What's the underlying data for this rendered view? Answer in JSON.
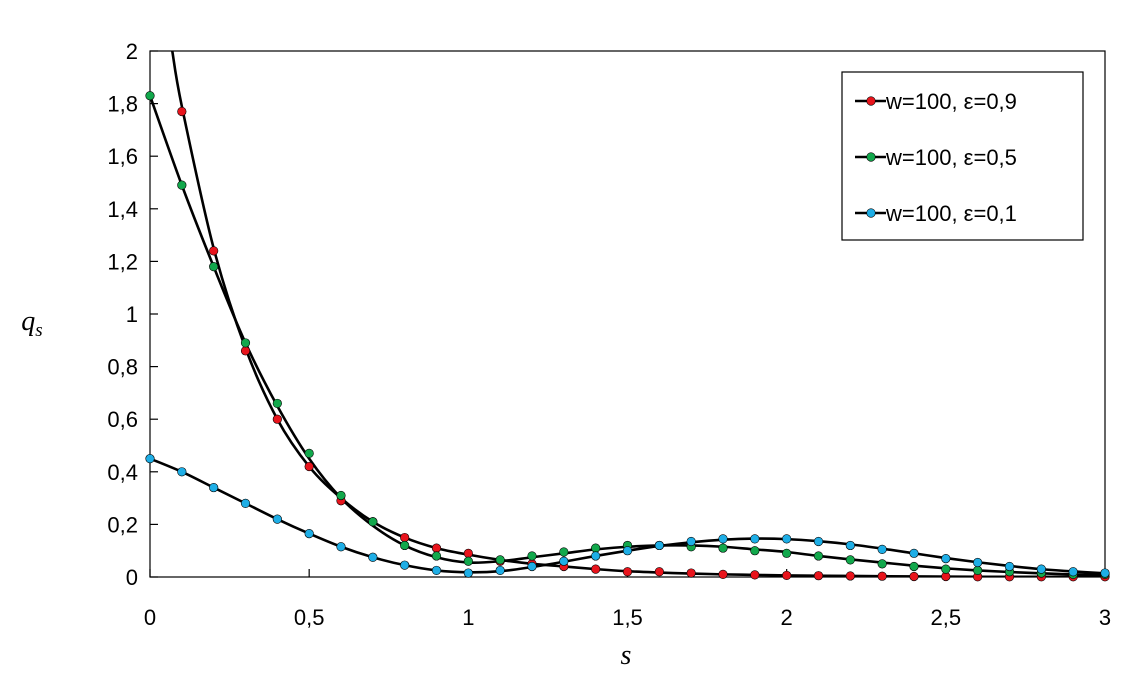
{
  "chart_data": {
    "type": "line",
    "xlabel": "s",
    "ylabel": "q",
    "ylabel_sub": "s",
    "xlim": [
      0,
      3
    ],
    "ylim": [
      0,
      2
    ],
    "x_ticks": [
      0,
      0.5,
      1,
      1.5,
      2,
      2.5,
      3
    ],
    "x_tick_labels": [
      "0",
      "0,5",
      "1",
      "1,5",
      "2",
      "2,5",
      "3"
    ],
    "y_ticks": [
      0,
      0.2,
      0.4,
      0.6,
      0.8,
      1,
      1.2,
      1.4,
      1.6,
      1.8,
      2
    ],
    "y_tick_labels": [
      "0",
      "0,2",
      "0,4",
      "0,6",
      "0,8",
      "1",
      "1,2",
      "1,4",
      "1,6",
      "1,8",
      "2"
    ],
    "grid": false,
    "legend_position": "top-right",
    "line_color": "#000000",
    "series": [
      {
        "name": "w=100, ε=0,9",
        "color": "#e8141c",
        "x": [
          0.1,
          0.2,
          0.3,
          0.4,
          0.5,
          0.6,
          0.7,
          0.8,
          0.9,
          1.0,
          1.1,
          1.2,
          1.3,
          1.4,
          1.5,
          1.6,
          1.7,
          1.8,
          1.9,
          2.0,
          2.1,
          2.2,
          2.3,
          2.4,
          2.5,
          2.6,
          2.7,
          2.8,
          2.9,
          3.0
        ],
        "values": [
          1.77,
          1.24,
          0.86,
          0.6,
          0.42,
          0.29,
          0.21,
          0.15,
          0.11,
          0.09,
          0.06,
          0.05,
          0.04,
          0.03,
          0.02,
          0.02,
          0.015,
          0.01,
          0.008,
          0.006,
          0.005,
          0.004,
          0.003,
          0.002,
          0.002,
          0.001,
          0.001,
          0.001,
          0.001,
          0.001
        ]
      },
      {
        "name": "w=100, ε=0,5",
        "color": "#12a84c",
        "x": [
          0,
          0.1,
          0.2,
          0.3,
          0.4,
          0.5,
          0.6,
          0.7,
          0.8,
          0.9,
          1.0,
          1.1,
          1.2,
          1.3,
          1.4,
          1.5,
          1.6,
          1.7,
          1.8,
          1.9,
          2.0,
          2.1,
          2.2,
          2.3,
          2.4,
          2.5,
          2.6,
          2.7,
          2.8,
          2.9,
          3.0
        ],
        "values": [
          1.83,
          1.49,
          1.18,
          0.89,
          0.66,
          0.47,
          0.31,
          0.21,
          0.12,
          0.08,
          0.06,
          0.065,
          0.08,
          0.095,
          0.11,
          0.12,
          0.12,
          0.115,
          0.11,
          0.1,
          0.09,
          0.08,
          0.065,
          0.05,
          0.04,
          0.03,
          0.025,
          0.02,
          0.015,
          0.01,
          0.01
        ]
      },
      {
        "name": "w=100, ε=0,1",
        "color": "#1eaee6",
        "x": [
          0,
          0.1,
          0.2,
          0.3,
          0.4,
          0.5,
          0.6,
          0.7,
          0.8,
          0.9,
          1.0,
          1.1,
          1.2,
          1.3,
          1.4,
          1.5,
          1.6,
          1.7,
          1.8,
          1.9,
          2.0,
          2.1,
          2.2,
          2.3,
          2.4,
          2.5,
          2.6,
          2.7,
          2.8,
          2.9,
          3.0
        ],
        "values": [
          0.45,
          0.4,
          0.34,
          0.28,
          0.22,
          0.165,
          0.115,
          0.075,
          0.045,
          0.025,
          0.015,
          0.025,
          0.04,
          0.06,
          0.08,
          0.1,
          0.12,
          0.135,
          0.145,
          0.145,
          0.145,
          0.135,
          0.12,
          0.105,
          0.09,
          0.07,
          0.055,
          0.04,
          0.03,
          0.02,
          0.015
        ]
      }
    ],
    "lines": [
      {
        "x": [
          0.07,
          0.1,
          0.2,
          0.3,
          0.4,
          0.5,
          0.6,
          0.7,
          0.8,
          0.9,
          1.0,
          1.1,
          1.2,
          1.3,
          1.4,
          1.5,
          1.6,
          1.7,
          1.8,
          1.9,
          2.0,
          2.2,
          2.4,
          2.6,
          2.8,
          3.0
        ],
        "values": [
          2.0,
          1.79,
          1.25,
          0.87,
          0.6,
          0.42,
          0.3,
          0.21,
          0.15,
          0.11,
          0.085,
          0.065,
          0.05,
          0.04,
          0.03,
          0.022,
          0.017,
          0.013,
          0.01,
          0.008,
          0.006,
          0.004,
          0.002,
          0.001,
          0.001,
          0.001
        ]
      },
      {
        "x": [
          0,
          0.1,
          0.2,
          0.3,
          0.4,
          0.5,
          0.6,
          0.7,
          0.8,
          0.9,
          1.0,
          1.1,
          1.2,
          1.3,
          1.4,
          1.5,
          1.6,
          1.7,
          1.8,
          1.9,
          2.0,
          2.1,
          2.2,
          2.3,
          2.4,
          2.5,
          2.6,
          2.7,
          2.8,
          2.9,
          3.0
        ],
        "values": [
          1.83,
          1.49,
          1.18,
          0.89,
          0.65,
          0.45,
          0.3,
          0.195,
          0.12,
          0.075,
          0.055,
          0.06,
          0.075,
          0.09,
          0.105,
          0.115,
          0.12,
          0.12,
          0.115,
          0.105,
          0.095,
          0.08,
          0.067,
          0.055,
          0.043,
          0.033,
          0.025,
          0.019,
          0.014,
          0.01,
          0.008
        ]
      },
      {
        "x": [
          0,
          0.1,
          0.2,
          0.3,
          0.4,
          0.5,
          0.6,
          0.7,
          0.8,
          0.9,
          1.0,
          1.1,
          1.2,
          1.3,
          1.4,
          1.5,
          1.6,
          1.7,
          1.8,
          1.9,
          2.0,
          2.1,
          2.2,
          2.3,
          2.4,
          2.5,
          2.6,
          2.7,
          2.8,
          2.9,
          3.0
        ],
        "values": [
          0.45,
          0.4,
          0.34,
          0.28,
          0.22,
          0.165,
          0.115,
          0.075,
          0.045,
          0.025,
          0.018,
          0.022,
          0.038,
          0.058,
          0.08,
          0.1,
          0.118,
          0.132,
          0.142,
          0.146,
          0.144,
          0.136,
          0.124,
          0.108,
          0.09,
          0.072,
          0.056,
          0.042,
          0.03,
          0.021,
          0.014
        ]
      }
    ]
  }
}
